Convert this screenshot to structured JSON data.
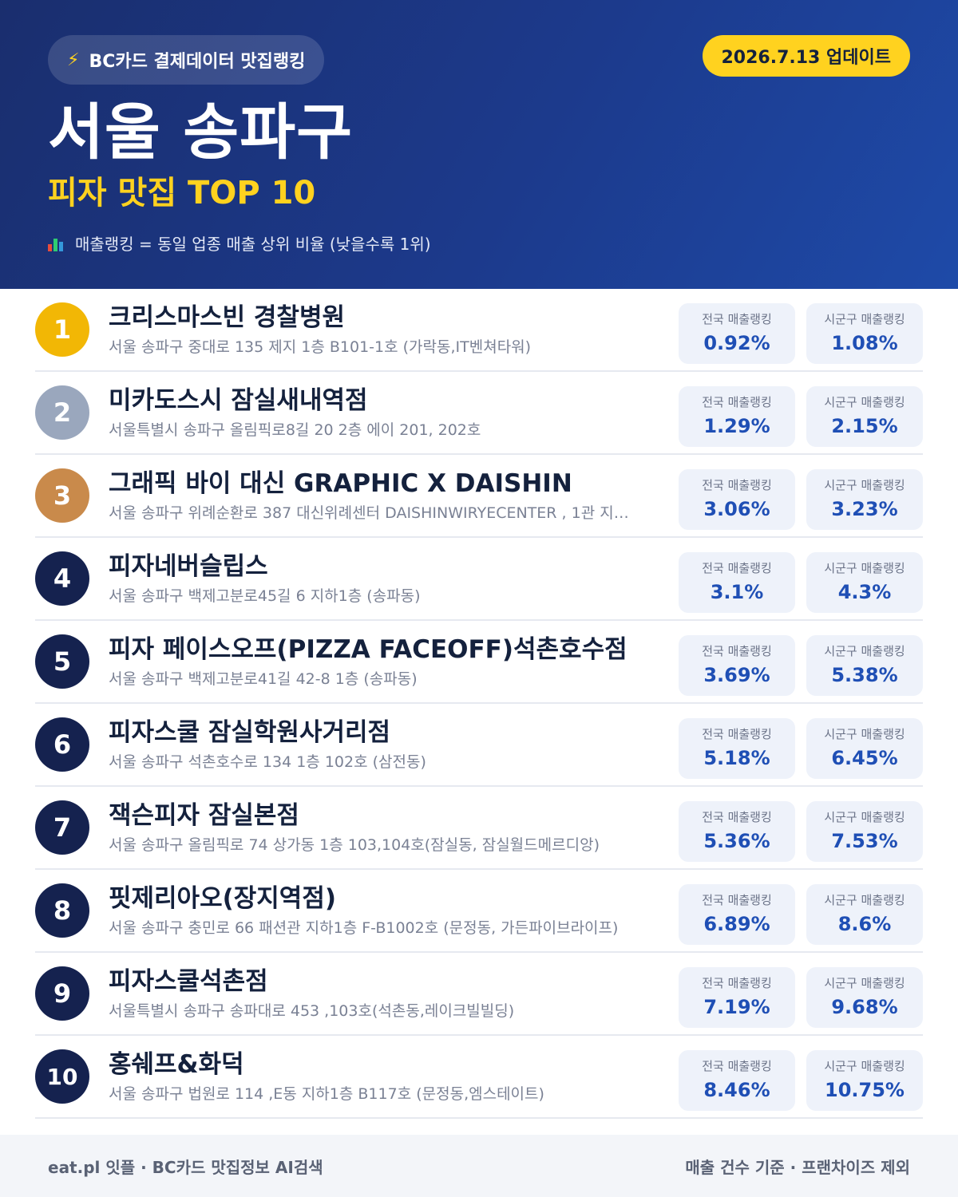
{
  "header": {
    "badge": "BC카드 결제데이터 맛집랭킹",
    "update": "2026.7.13 업데이트",
    "title": "서울 송파구",
    "subtitle": "피자 맛집 TOP 10",
    "note": "매출랭킹 = 동일 업종 매출 상위 비율 (낮을수록 1위)",
    "badge_icon": "lightning-bolt",
    "note_icon": "bar-chart",
    "colors": {
      "bg_start": "#1a2e6e",
      "bg_end": "#1e4aa8",
      "accent": "#ffd21f"
    }
  },
  "stat_labels": {
    "national": "전국 매출랭킹",
    "district": "시군구 매출랭킹"
  },
  "items": [
    {
      "rank": "1",
      "name": "크리스마스빈 경찰병원",
      "address": "서울 송파구 중대로 135 제지 1층 B101-1호 (가락동,IT벤쳐타워)",
      "national": "0.92%",
      "district": "1.08%",
      "color": "#f2b705"
    },
    {
      "rank": "2",
      "name": "미카도스시 잠실새내역점",
      "address": "서울특별시 송파구 올림픽로8길 20 2층 에이 201, 202호",
      "national": "1.29%",
      "district": "2.15%",
      "color": "#9aa7bd"
    },
    {
      "rank": "3",
      "name": "그래픽 바이 대신 GRAPHIC X DAISHIN",
      "address": "서울 송파구 위례순환로 387 대신위례센터 DAISHINWIRYECENTER , 1관 지…",
      "national": "3.06%",
      "district": "3.23%",
      "color": "#c98a4b"
    },
    {
      "rank": "4",
      "name": "피자네버슬립스",
      "address": "서울 송파구 백제고분로45길 6 지하1층 (송파동)",
      "national": "3.1%",
      "district": "4.3%",
      "color": "#15224f"
    },
    {
      "rank": "5",
      "name": "피자 페이스오프(PIZZA FACEOFF)석촌호수점",
      "address": "서울 송파구 백제고분로41길 42-8 1층 (송파동)",
      "national": "3.69%",
      "district": "5.38%",
      "color": "#15224f"
    },
    {
      "rank": "6",
      "name": "피자스쿨 잠실학원사거리점",
      "address": "서울 송파구 석촌호수로 134 1층 102호 (삼전동)",
      "national": "5.18%",
      "district": "6.45%",
      "color": "#15224f"
    },
    {
      "rank": "7",
      "name": "잭슨피자 잠실본점",
      "address": "서울 송파구 올림픽로 74 상가동 1층 103,104호(잠실동, 잠실월드메르디앙)",
      "national": "5.36%",
      "district": "7.53%",
      "color": "#15224f"
    },
    {
      "rank": "8",
      "name": "핏제리아오(장지역점)",
      "address": "서울 송파구 충민로 66 패션관 지하1층 F-B1002호 (문정동, 가든파이브라이프)",
      "national": "6.89%",
      "district": "8.6%",
      "color": "#15224f"
    },
    {
      "rank": "9",
      "name": "피자스쿨석촌점",
      "address": "서울특별시 송파구 송파대로 453 ,103호(석촌동,레이크빌빌딩)",
      "national": "7.19%",
      "district": "9.68%",
      "color": "#15224f"
    },
    {
      "rank": "10",
      "name": "홍쉐프&화덕",
      "address": "서울 송파구 법원로 114 ,E동 지하1층 B117호 (문정동,엠스테이트)",
      "national": "8.46%",
      "district": "10.75%",
      "color": "#15224f"
    }
  ],
  "footer": {
    "left": "eat.pl 잇플 · BC카드 맛집정보 AI검색",
    "right": "매출 건수 기준 · 프랜차이즈 제외"
  }
}
